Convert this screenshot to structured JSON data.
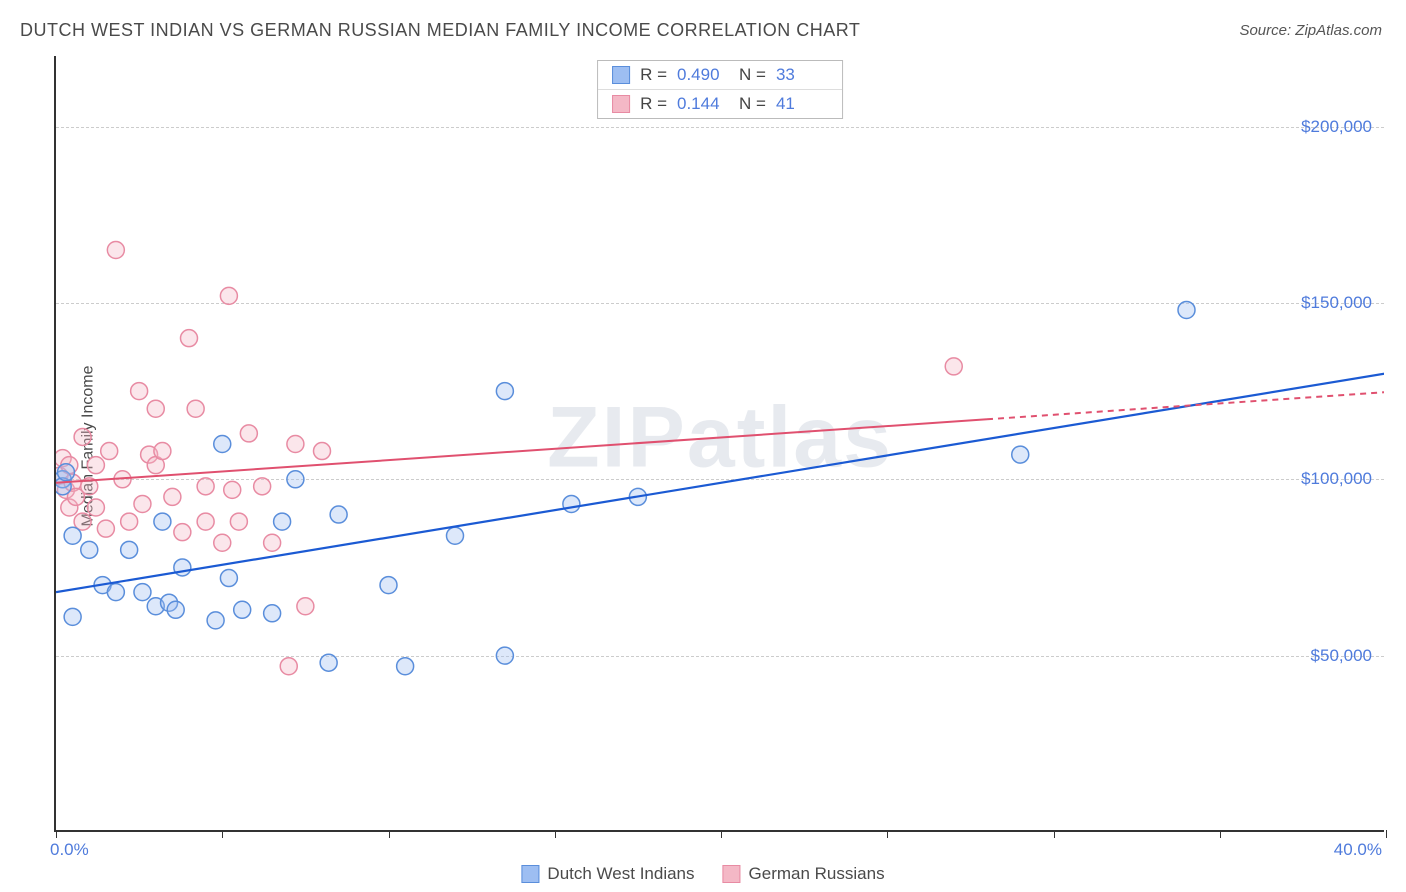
{
  "title": "DUTCH WEST INDIAN VS GERMAN RUSSIAN MEDIAN FAMILY INCOME CORRELATION CHART",
  "source": "Source: ZipAtlas.com",
  "y_axis_label": "Median Family Income",
  "watermark": "ZIPatlas",
  "chart": {
    "type": "scatter",
    "background_color": "#ffffff",
    "grid_color": "#cccccc",
    "axis_color": "#333333",
    "xlim": [
      0,
      40
    ],
    "ylim": [
      0,
      220000
    ],
    "x_ticks": [
      0,
      5,
      10,
      15,
      20,
      25,
      30,
      35,
      40
    ],
    "x_tick_labels": {
      "0": "0.0%",
      "40": "40.0%"
    },
    "y_gridlines": [
      50000,
      100000,
      150000,
      200000
    ],
    "y_tick_labels": {
      "50000": "$50,000",
      "100000": "$100,000",
      "150000": "$150,000",
      "200000": "$200,000"
    },
    "tick_label_color": "#4f7bdc",
    "marker_radius": 8.5,
    "series": [
      {
        "name": "Dutch West Indians",
        "color_fill": "#9dbef2",
        "color_stroke": "#5a8edb",
        "R": "0.490",
        "N": "33",
        "regression": {
          "x1": 0,
          "y1": 68000,
          "x2": 40,
          "y2": 130000,
          "color": "#1b5ad3",
          "width": 2.2,
          "extrapolate_from_x": 40
        },
        "points": [
          {
            "x": 0.2,
            "y": 100000
          },
          {
            "x": 0.2,
            "y": 98000
          },
          {
            "x": 0.3,
            "y": 102000
          },
          {
            "x": 0.5,
            "y": 84000
          },
          {
            "x": 0.5,
            "y": 61000
          },
          {
            "x": 1.0,
            "y": 80000
          },
          {
            "x": 1.4,
            "y": 70000
          },
          {
            "x": 1.8,
            "y": 68000
          },
          {
            "x": 2.2,
            "y": 80000
          },
          {
            "x": 2.6,
            "y": 68000
          },
          {
            "x": 3.0,
            "y": 64000
          },
          {
            "x": 3.2,
            "y": 88000
          },
          {
            "x": 3.4,
            "y": 65000
          },
          {
            "x": 3.6,
            "y": 63000
          },
          {
            "x": 3.8,
            "y": 75000
          },
          {
            "x": 4.8,
            "y": 60000
          },
          {
            "x": 5.0,
            "y": 110000
          },
          {
            "x": 5.2,
            "y": 72000
          },
          {
            "x": 5.6,
            "y": 63000
          },
          {
            "x": 6.5,
            "y": 62000
          },
          {
            "x": 6.8,
            "y": 88000
          },
          {
            "x": 7.2,
            "y": 100000
          },
          {
            "x": 8.2,
            "y": 48000
          },
          {
            "x": 8.5,
            "y": 90000
          },
          {
            "x": 10.0,
            "y": 70000
          },
          {
            "x": 10.5,
            "y": 47000
          },
          {
            "x": 12.0,
            "y": 84000
          },
          {
            "x": 13.5,
            "y": 50000
          },
          {
            "x": 13.5,
            "y": 125000
          },
          {
            "x": 15.5,
            "y": 93000
          },
          {
            "x": 17.5,
            "y": 95000
          },
          {
            "x": 29.0,
            "y": 107000
          },
          {
            "x": 34.0,
            "y": 148000
          }
        ]
      },
      {
        "name": "German Russians",
        "color_fill": "#f4b8c6",
        "color_stroke": "#e88ba3",
        "R": "0.144",
        "N": "41",
        "regression": {
          "x1": 0,
          "y1": 99000,
          "x2": 28,
          "y2": 117000,
          "color": "#e0506f",
          "width": 2,
          "extrapolate_from_x": 28,
          "extrapolate_to_x": 40,
          "dash": "6,5"
        },
        "points": [
          {
            "x": 0.1,
            "y": 101000
          },
          {
            "x": 0.2,
            "y": 106000
          },
          {
            "x": 0.3,
            "y": 97000
          },
          {
            "x": 0.4,
            "y": 104000
          },
          {
            "x": 0.4,
            "y": 92000
          },
          {
            "x": 0.5,
            "y": 99000
          },
          {
            "x": 0.6,
            "y": 95000
          },
          {
            "x": 0.8,
            "y": 112000
          },
          {
            "x": 0.8,
            "y": 88000
          },
          {
            "x": 1.0,
            "y": 98000
          },
          {
            "x": 1.2,
            "y": 92000
          },
          {
            "x": 1.2,
            "y": 104000
          },
          {
            "x": 1.5,
            "y": 86000
          },
          {
            "x": 1.6,
            "y": 108000
          },
          {
            "x": 1.8,
            "y": 165000
          },
          {
            "x": 2.0,
            "y": 100000
          },
          {
            "x": 2.2,
            "y": 88000
          },
          {
            "x": 2.5,
            "y": 125000
          },
          {
            "x": 2.6,
            "y": 93000
          },
          {
            "x": 2.8,
            "y": 107000
          },
          {
            "x": 3.0,
            "y": 120000
          },
          {
            "x": 3.0,
            "y": 104000
          },
          {
            "x": 3.2,
            "y": 108000
          },
          {
            "x": 3.5,
            "y": 95000
          },
          {
            "x": 3.8,
            "y": 85000
          },
          {
            "x": 4.0,
            "y": 140000
          },
          {
            "x": 4.2,
            "y": 120000
          },
          {
            "x": 4.5,
            "y": 98000
          },
          {
            "x": 4.5,
            "y": 88000
          },
          {
            "x": 5.0,
            "y": 82000
          },
          {
            "x": 5.2,
            "y": 152000
          },
          {
            "x": 5.3,
            "y": 97000
          },
          {
            "x": 5.5,
            "y": 88000
          },
          {
            "x": 5.8,
            "y": 113000
          },
          {
            "x": 6.2,
            "y": 98000
          },
          {
            "x": 6.5,
            "y": 82000
          },
          {
            "x": 7.0,
            "y": 47000
          },
          {
            "x": 7.2,
            "y": 110000
          },
          {
            "x": 7.5,
            "y": 64000
          },
          {
            "x": 8.0,
            "y": 108000
          },
          {
            "x": 27.0,
            "y": 132000
          }
        ]
      }
    ]
  },
  "stats_labels": {
    "R": "R =",
    "N": "N ="
  },
  "legend_bottom": [
    "Dutch West Indians",
    "German Russians"
  ]
}
